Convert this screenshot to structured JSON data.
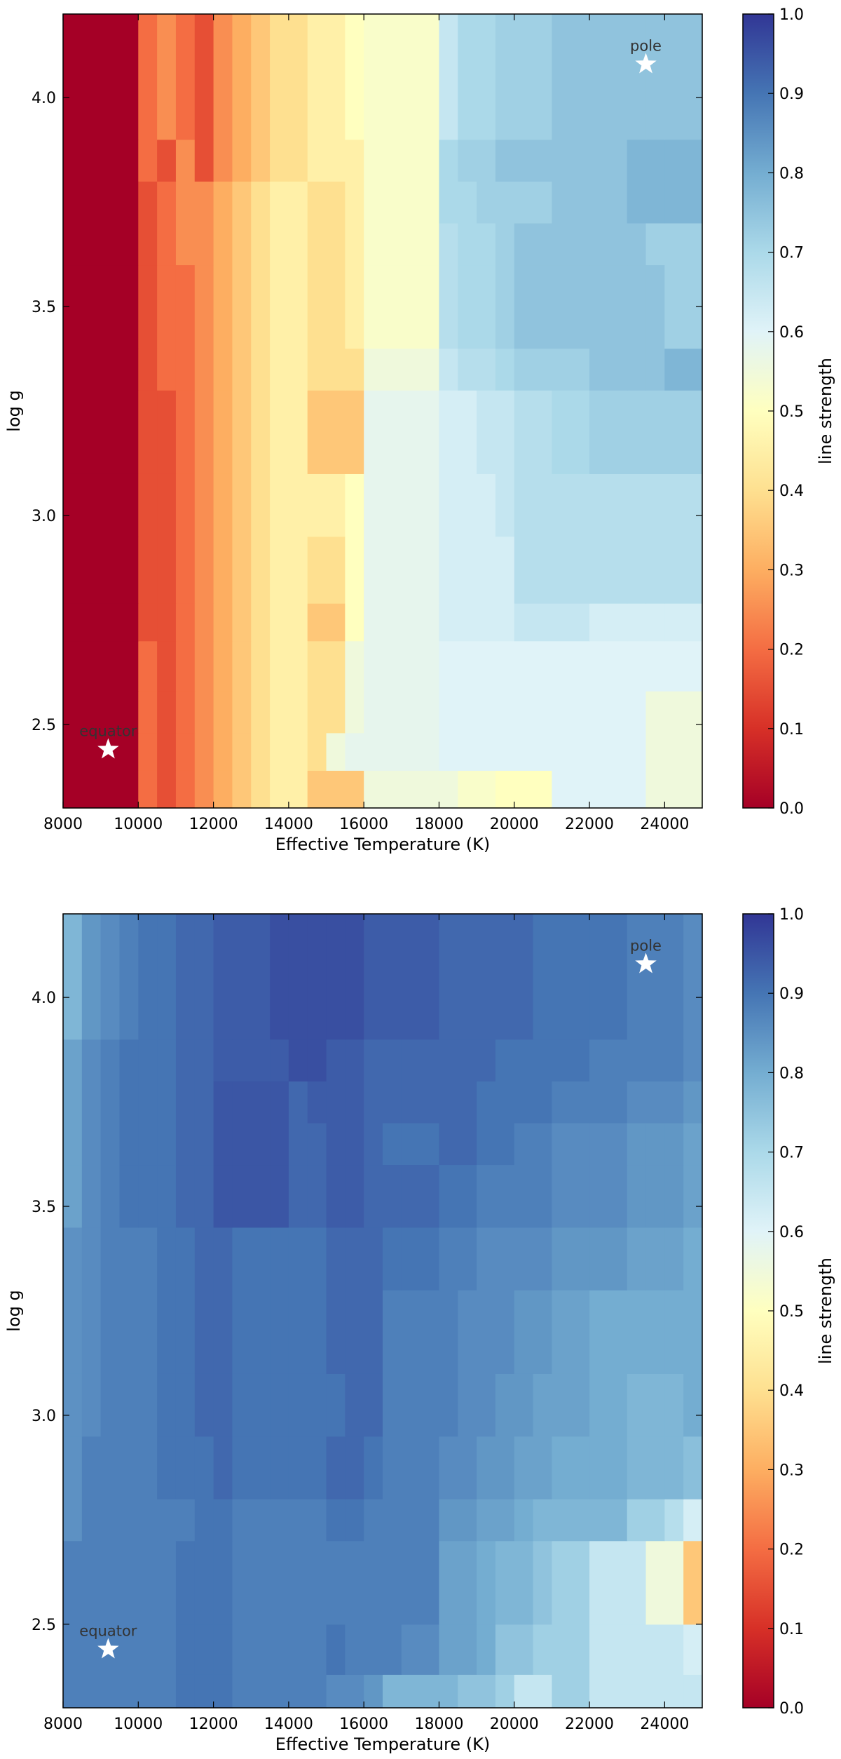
{
  "chart_data": [
    {
      "type": "heatmap",
      "title": "",
      "xlabel": "Effective Temperature (K)",
      "ylabel": "log g",
      "xlim": [
        8000,
        25000
      ],
      "ylim": [
        2.3,
        4.2
      ],
      "xticks": [
        "8000",
        "10000",
        "12000",
        "14000",
        "16000",
        "18000",
        "20000",
        "22000",
        "24000"
      ],
      "yticks": [
        "2.5",
        "3.0",
        "3.5",
        "4.0"
      ],
      "colorbar": {
        "label": "line strength",
        "range": [
          0.0,
          1.0
        ],
        "ticks": [
          "0.0",
          "0.1",
          "0.2",
          "0.3",
          "0.4",
          "0.5",
          "0.6",
          "0.7",
          "0.8",
          "0.9",
          "1.0"
        ],
        "colormap": "RdYlBu"
      },
      "grid": {
        "x_edges": [
          8000,
          10000,
          10500,
          11000,
          11500,
          12000,
          12500,
          13000,
          13500,
          14000,
          14500,
          15000,
          15500,
          16000,
          16500,
          17000,
          18000,
          18500,
          19000,
          19500,
          20000,
          21000,
          22000,
          23000,
          23500,
          24000,
          25000
        ],
        "y_edges": [
          2.3,
          2.39,
          2.48,
          2.58,
          2.7,
          2.79,
          2.95,
          3.1,
          3.3,
          3.4,
          3.6,
          3.7,
          3.8,
          3.9,
          4.2
        ],
        "values": [
          [
            0.0,
            0.2,
            0.15,
            0.2,
            0.25,
            0.3,
            0.35,
            0.4,
            0.45,
            0.45,
            0.35,
            0.35,
            0.35,
            0.55,
            0.55,
            0.55,
            0.55,
            0.52,
            0.52,
            0.5,
            0.5,
            0.6,
            0.6,
            0.6,
            0.55,
            0.55
          ],
          [
            0.0,
            0.2,
            0.15,
            0.2,
            0.25,
            0.3,
            0.35,
            0.4,
            0.45,
            0.45,
            0.4,
            0.55,
            0.58,
            0.58,
            0.58,
            0.58,
            0.6,
            0.6,
            0.6,
            0.6,
            0.6,
            0.6,
            0.6,
            0.6,
            0.55,
            0.55
          ],
          [
            0.0,
            0.2,
            0.15,
            0.2,
            0.25,
            0.3,
            0.35,
            0.4,
            0.45,
            0.45,
            0.4,
            0.4,
            0.55,
            0.58,
            0.58,
            0.58,
            0.6,
            0.6,
            0.6,
            0.6,
            0.6,
            0.6,
            0.6,
            0.6,
            0.55,
            0.55
          ],
          [
            0.0,
            0.2,
            0.15,
            0.2,
            0.25,
            0.3,
            0.35,
            0.4,
            0.45,
            0.45,
            0.4,
            0.4,
            0.55,
            0.58,
            0.58,
            0.58,
            0.6,
            0.6,
            0.6,
            0.6,
            0.6,
            0.6,
            0.6,
            0.6,
            0.6,
            0.6
          ],
          [
            0.0,
            0.15,
            0.15,
            0.2,
            0.25,
            0.3,
            0.35,
            0.4,
            0.45,
            0.45,
            0.35,
            0.35,
            0.5,
            0.58,
            0.58,
            0.58,
            0.62,
            0.62,
            0.62,
            0.62,
            0.65,
            0.65,
            0.62,
            0.62,
            0.62,
            0.62
          ],
          [
            0.0,
            0.15,
            0.15,
            0.2,
            0.25,
            0.3,
            0.35,
            0.4,
            0.45,
            0.45,
            0.4,
            0.4,
            0.5,
            0.58,
            0.58,
            0.58,
            0.62,
            0.62,
            0.62,
            0.62,
            0.68,
            0.68,
            0.68,
            0.68,
            0.68,
            0.68
          ],
          [
            0.0,
            0.15,
            0.15,
            0.2,
            0.25,
            0.3,
            0.35,
            0.4,
            0.45,
            0.45,
            0.45,
            0.45,
            0.5,
            0.58,
            0.58,
            0.58,
            0.62,
            0.62,
            0.62,
            0.65,
            0.68,
            0.68,
            0.68,
            0.68,
            0.68,
            0.68
          ],
          [
            0.0,
            0.15,
            0.15,
            0.2,
            0.25,
            0.3,
            0.35,
            0.4,
            0.45,
            0.45,
            0.35,
            0.35,
            0.35,
            0.58,
            0.58,
            0.58,
            0.62,
            0.62,
            0.65,
            0.65,
            0.68,
            0.7,
            0.72,
            0.72,
            0.72,
            0.72
          ],
          [
            0.0,
            0.15,
            0.2,
            0.2,
            0.25,
            0.3,
            0.35,
            0.4,
            0.45,
            0.45,
            0.4,
            0.4,
            0.4,
            0.55,
            0.55,
            0.55,
            0.65,
            0.68,
            0.68,
            0.7,
            0.72,
            0.72,
            0.75,
            0.75,
            0.75,
            0.78
          ],
          [
            0.0,
            0.15,
            0.2,
            0.2,
            0.25,
            0.3,
            0.35,
            0.4,
            0.45,
            0.45,
            0.4,
            0.4,
            0.45,
            0.52,
            0.52,
            0.52,
            0.68,
            0.7,
            0.7,
            0.72,
            0.75,
            0.75,
            0.75,
            0.75,
            0.75,
            0.72
          ],
          [
            0.0,
            0.15,
            0.2,
            0.25,
            0.25,
            0.3,
            0.35,
            0.4,
            0.45,
            0.45,
            0.4,
            0.4,
            0.45,
            0.52,
            0.52,
            0.52,
            0.68,
            0.7,
            0.7,
            0.72,
            0.75,
            0.75,
            0.75,
            0.75,
            0.72,
            0.72
          ],
          [
            0.0,
            0.15,
            0.2,
            0.25,
            0.25,
            0.3,
            0.35,
            0.4,
            0.45,
            0.45,
            0.4,
            0.4,
            0.45,
            0.52,
            0.52,
            0.52,
            0.7,
            0.7,
            0.72,
            0.72,
            0.72,
            0.75,
            0.75,
            0.78,
            0.78,
            0.78
          ],
          [
            0.0,
            0.2,
            0.15,
            0.25,
            0.15,
            0.25,
            0.3,
            0.35,
            0.4,
            0.4,
            0.45,
            0.45,
            0.45,
            0.52,
            0.52,
            0.52,
            0.7,
            0.72,
            0.72,
            0.75,
            0.75,
            0.75,
            0.75,
            0.78,
            0.78,
            0.78
          ],
          [
            0.0,
            0.2,
            0.25,
            0.2,
            0.15,
            0.25,
            0.3,
            0.35,
            0.4,
            0.4,
            0.45,
            0.45,
            0.5,
            0.52,
            0.52,
            0.52,
            0.65,
            0.7,
            0.7,
            0.72,
            0.72,
            0.75,
            0.75,
            0.75,
            0.75,
            0.75
          ]
        ]
      },
      "annotations": [
        {
          "text": "pole",
          "x": 23500,
          "y": 4.08
        },
        {
          "text": "equator",
          "x": 9200,
          "y": 2.44
        }
      ]
    },
    {
      "type": "heatmap",
      "title": "",
      "xlabel": "Effective Temperature (K)",
      "ylabel": "log g",
      "xlim": [
        8000,
        25000
      ],
      "ylim": [
        2.3,
        4.2
      ],
      "xticks": [
        "8000",
        "10000",
        "12000",
        "14000",
        "16000",
        "18000",
        "20000",
        "22000",
        "24000"
      ],
      "yticks": [
        "2.5",
        "3.0",
        "3.5",
        "4.0"
      ],
      "colorbar": {
        "label": "line strength",
        "range": [
          0.0,
          1.0
        ],
        "ticks": [
          "0.0",
          "0.1",
          "0.2",
          "0.3",
          "0.4",
          "0.5",
          "0.6",
          "0.7",
          "0.8",
          "0.9",
          "1.0"
        ],
        "colormap": "RdYlBu"
      },
      "grid": {
        "x_edges": [
          8000,
          8500,
          9000,
          9500,
          10000,
          10500,
          11000,
          11500,
          12000,
          12500,
          13500,
          14000,
          14500,
          15000,
          15500,
          16000,
          16500,
          17000,
          18000,
          18500,
          19000,
          19500,
          20000,
          20500,
          21000,
          22000,
          23000,
          23500,
          24000,
          24500,
          25000
        ],
        "y_edges": [
          2.3,
          2.38,
          2.5,
          2.7,
          2.8,
          2.95,
          3.1,
          3.3,
          3.45,
          3.6,
          3.7,
          3.8,
          3.9,
          4.2
        ],
        "values": [
          [
            0.88,
            0.88,
            0.88,
            0.88,
            0.88,
            0.88,
            0.9,
            0.9,
            0.9,
            0.88,
            0.88,
            0.88,
            0.88,
            0.86,
            0.86,
            0.84,
            0.78,
            0.78,
            0.78,
            0.75,
            0.75,
            0.72,
            0.65,
            0.65,
            0.72,
            0.65,
            0.65,
            0.65,
            0.65,
            0.65
          ],
          [
            0.88,
            0.88,
            0.88,
            0.88,
            0.88,
            0.88,
            0.9,
            0.9,
            0.9,
            0.88,
            0.88,
            0.88,
            0.88,
            0.9,
            0.88,
            0.88,
            0.88,
            0.86,
            0.82,
            0.82,
            0.8,
            0.75,
            0.75,
            0.72,
            0.72,
            0.65,
            0.65,
            0.65,
            0.65,
            0.62
          ],
          [
            0.88,
            0.88,
            0.88,
            0.88,
            0.88,
            0.88,
            0.9,
            0.9,
            0.9,
            0.88,
            0.88,
            0.88,
            0.88,
            0.88,
            0.88,
            0.88,
            0.88,
            0.88,
            0.82,
            0.82,
            0.8,
            0.78,
            0.78,
            0.75,
            0.72,
            0.65,
            0.65,
            0.55,
            0.55,
            0.35
          ],
          [
            0.85,
            0.88,
            0.88,
            0.88,
            0.88,
            0.88,
            0.88,
            0.9,
            0.9,
            0.88,
            0.88,
            0.88,
            0.88,
            0.9,
            0.9,
            0.88,
            0.88,
            0.88,
            0.84,
            0.84,
            0.82,
            0.82,
            0.8,
            0.78,
            0.78,
            0.78,
            0.72,
            0.72,
            0.68,
            0.62
          ],
          [
            0.85,
            0.88,
            0.88,
            0.88,
            0.88,
            0.9,
            0.9,
            0.9,
            0.92,
            0.9,
            0.9,
            0.9,
            0.9,
            0.92,
            0.92,
            0.9,
            0.88,
            0.88,
            0.86,
            0.86,
            0.84,
            0.84,
            0.82,
            0.82,
            0.8,
            0.8,
            0.78,
            0.78,
            0.78,
            0.76
          ],
          [
            0.85,
            0.86,
            0.88,
            0.88,
            0.88,
            0.9,
            0.9,
            0.92,
            0.92,
            0.9,
            0.9,
            0.9,
            0.9,
            0.9,
            0.92,
            0.92,
            0.88,
            0.88,
            0.88,
            0.86,
            0.86,
            0.84,
            0.84,
            0.82,
            0.82,
            0.8,
            0.78,
            0.78,
            0.78,
            0.8
          ],
          [
            0.85,
            0.86,
            0.88,
            0.88,
            0.88,
            0.9,
            0.9,
            0.92,
            0.92,
            0.9,
            0.9,
            0.9,
            0.9,
            0.92,
            0.92,
            0.92,
            0.88,
            0.88,
            0.88,
            0.86,
            0.86,
            0.86,
            0.84,
            0.84,
            0.82,
            0.8,
            0.8,
            0.8,
            0.8,
            0.8
          ],
          [
            0.85,
            0.86,
            0.88,
            0.88,
            0.88,
            0.9,
            0.9,
            0.92,
            0.92,
            0.9,
            0.9,
            0.9,
            0.9,
            0.92,
            0.92,
            0.92,
            0.9,
            0.9,
            0.88,
            0.88,
            0.86,
            0.86,
            0.86,
            0.86,
            0.84,
            0.84,
            0.82,
            0.82,
            0.82,
            0.8
          ],
          [
            0.82,
            0.86,
            0.88,
            0.9,
            0.9,
            0.9,
            0.92,
            0.92,
            0.95,
            0.95,
            0.95,
            0.92,
            0.92,
            0.94,
            0.94,
            0.92,
            0.92,
            0.92,
            0.9,
            0.9,
            0.88,
            0.88,
            0.88,
            0.88,
            0.86,
            0.86,
            0.84,
            0.84,
            0.84,
            0.82
          ],
          [
            0.82,
            0.86,
            0.88,
            0.9,
            0.9,
            0.9,
            0.92,
            0.92,
            0.95,
            0.95,
            0.95,
            0.92,
            0.92,
            0.94,
            0.94,
            0.92,
            0.9,
            0.9,
            0.92,
            0.92,
            0.9,
            0.9,
            0.88,
            0.88,
            0.86,
            0.86,
            0.84,
            0.84,
            0.84,
            0.82
          ],
          [
            0.82,
            0.86,
            0.88,
            0.9,
            0.9,
            0.9,
            0.92,
            0.92,
            0.95,
            0.95,
            0.95,
            0.92,
            0.94,
            0.94,
            0.94,
            0.92,
            0.92,
            0.92,
            0.92,
            0.92,
            0.9,
            0.9,
            0.9,
            0.9,
            0.88,
            0.88,
            0.86,
            0.86,
            0.86,
            0.84
          ],
          [
            0.82,
            0.86,
            0.88,
            0.9,
            0.9,
            0.9,
            0.92,
            0.92,
            0.94,
            0.94,
            0.94,
            0.96,
            0.96,
            0.94,
            0.94,
            0.92,
            0.92,
            0.92,
            0.92,
            0.92,
            0.92,
            0.9,
            0.9,
            0.9,
            0.9,
            0.88,
            0.88,
            0.88,
            0.88,
            0.86
          ],
          [
            0.78,
            0.84,
            0.86,
            0.88,
            0.9,
            0.9,
            0.92,
            0.92,
            0.94,
            0.94,
            0.96,
            0.96,
            0.96,
            0.96,
            0.96,
            0.94,
            0.94,
            0.94,
            0.92,
            0.92,
            0.92,
            0.92,
            0.92,
            0.9,
            0.9,
            0.9,
            0.88,
            0.88,
            0.88,
            0.86
          ]
        ]
      },
      "annotations": [
        {
          "text": "pole",
          "x": 23500,
          "y": 4.08
        },
        {
          "text": "equator",
          "x": 9200,
          "y": 2.44
        }
      ]
    }
  ]
}
